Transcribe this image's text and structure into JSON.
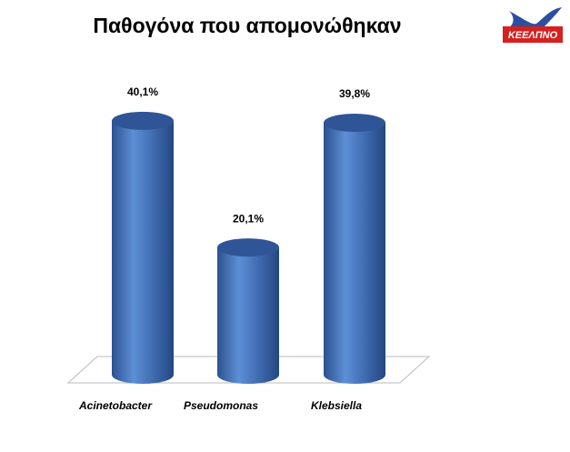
{
  "chart_data": {
    "type": "bar3d",
    "title": "Παθογόνα που απομονώθηκαν",
    "categories": [
      "Acinetobacter",
      "Pseudomonas",
      "Klebsiella"
    ],
    "values": [
      40.1,
      20.1,
      39.8
    ],
    "value_labels": [
      "40,1%",
      "20,1%",
      "39,8%"
    ],
    "color": "#4a78c0"
  },
  "logo": {
    "text": "ΚΕΕΛΠΝΟ"
  }
}
